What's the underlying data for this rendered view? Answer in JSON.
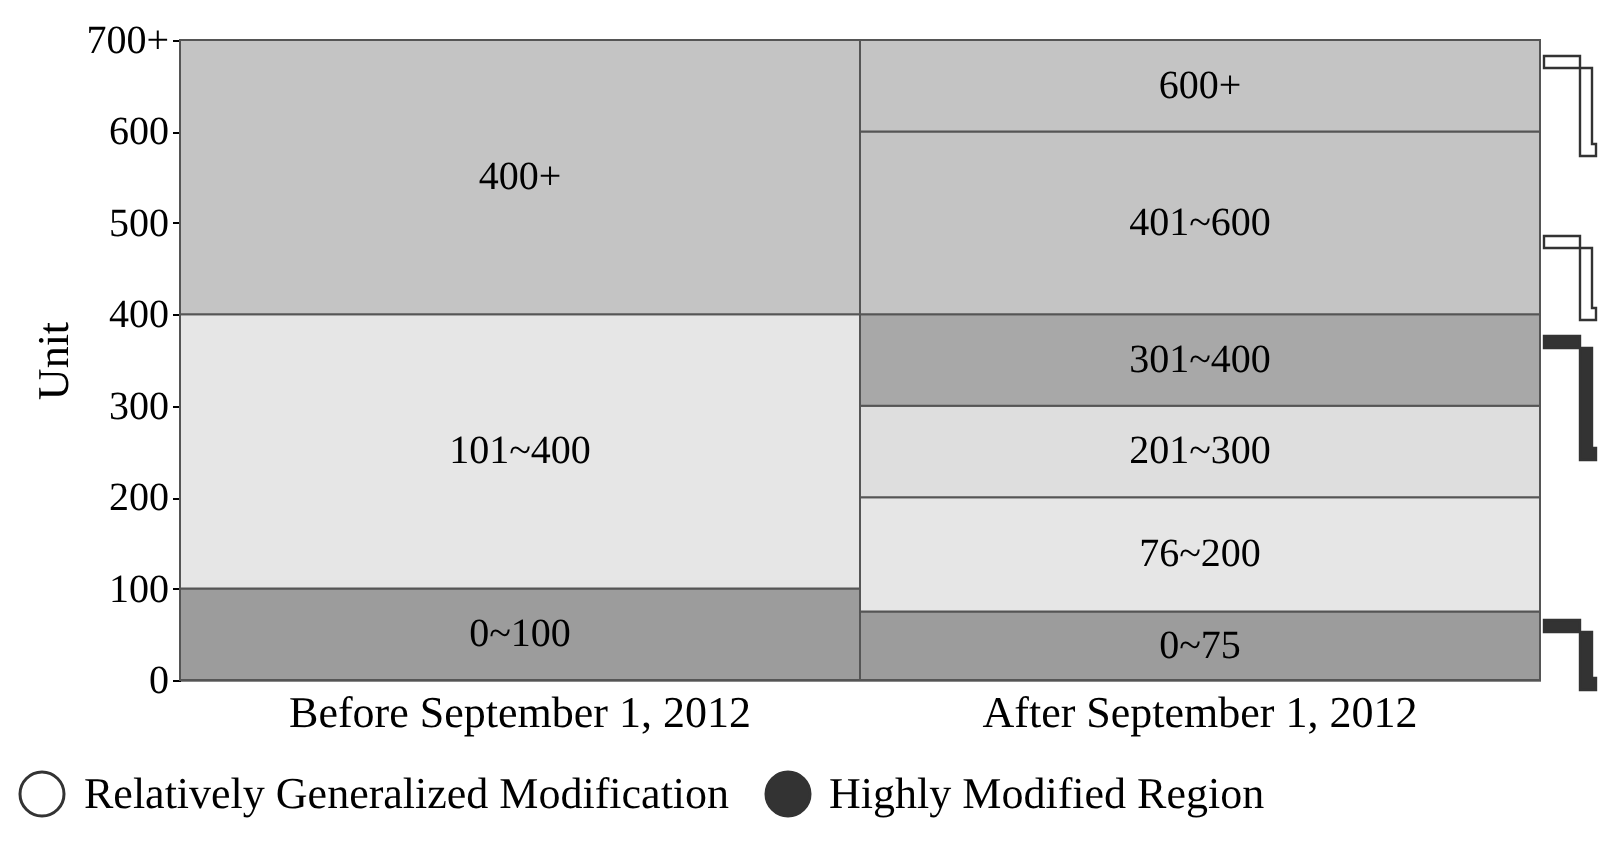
{
  "chart_data": {
    "type": "bar",
    "stacked": true,
    "ylabel": "Unit",
    "categories": [
      "Before September 1, 2012",
      "After September 1, 2012"
    ],
    "ylim": [
      0,
      700
    ],
    "yticks": [
      0,
      100,
      200,
      300,
      400,
      500,
      600,
      {
        "value": 700,
        "label": "700+"
      }
    ],
    "series": [
      {
        "name": "0~100",
        "color": "#9c9c9c",
        "values": [
          100,
          null
        ]
      },
      {
        "name": "101~400",
        "color": "#e6e6e6",
        "values": [
          300,
          null
        ]
      },
      {
        "name": "400+",
        "color": "#c4c4c4",
        "values": [
          300,
          null
        ]
      },
      {
        "name": "0~75",
        "color": "#9c9c9c",
        "values": [
          null,
          75
        ]
      },
      {
        "name": "76~200",
        "color": "#e6e6e6",
        "values": [
          null,
          125
        ]
      },
      {
        "name": "201~300",
        "color": "#dedede",
        "values": [
          null,
          100
        ]
      },
      {
        "name": "301~400",
        "color": "#a8a8a8",
        "values": [
          null,
          100
        ]
      },
      {
        "name": "401~600",
        "color": "#c4c4c4",
        "values": [
          null,
          200
        ]
      },
      {
        "name": "600+",
        "color": "#c4c4c4",
        "values": [
          null,
          100
        ]
      }
    ],
    "annotations": [
      "Relatively Generalized Modification",
      "Highly Modified Region"
    ]
  }
}
